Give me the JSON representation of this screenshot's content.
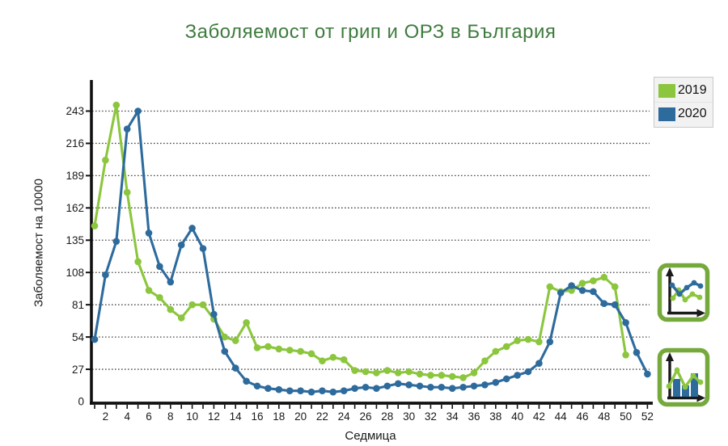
{
  "title": "Заболяемост от грип и ОРЗ в България",
  "legend": {
    "items": [
      {
        "label": "2019",
        "color": "#8cc63e"
      },
      {
        "label": "2020",
        "color": "#2e6b9d"
      }
    ]
  },
  "chart_data": {
    "type": "line",
    "title": "Заболяемост от грип и ОРЗ в България",
    "xlabel": "Седмица",
    "ylabel": "Заболяемост на 10000",
    "x_unit": "week",
    "x_start": 1,
    "x_end": 52,
    "x_tick_labels": [
      2,
      4,
      6,
      8,
      10,
      12,
      14,
      16,
      18,
      20,
      22,
      24,
      26,
      28,
      30,
      32,
      34,
      36,
      38,
      40,
      42,
      44,
      46,
      48,
      50,
      52
    ],
    "y_ticks": [
      0,
      27,
      54,
      81,
      108,
      135,
      162,
      189,
      216,
      243
    ],
    "ylim": [
      0,
      260
    ],
    "grid": "horizontal-dotted",
    "legend_position": "top-right",
    "series": [
      {
        "name": "2019",
        "color": "#8cc63e",
        "first_week": 1,
        "values": [
          147,
          202,
          248,
          175,
          117,
          93,
          87,
          77,
          70,
          81,
          81,
          69,
          54,
          51,
          66,
          45,
          46,
          44,
          43,
          42,
          40,
          34,
          37,
          35,
          26,
          25,
          24,
          26,
          24,
          25,
          23,
          22,
          22,
          21,
          20,
          24,
          34,
          42,
          46,
          51,
          52,
          50,
          96,
          92,
          93,
          99,
          101,
          104,
          96,
          39
        ]
      },
      {
        "name": "2020",
        "color": "#2e6b9d",
        "first_week": 1,
        "values": [
          52,
          106,
          134,
          228,
          243,
          141,
          113,
          100,
          131,
          145,
          128,
          73,
          42,
          28,
          17,
          13,
          11,
          10,
          9,
          9,
          8,
          9,
          8,
          9,
          11,
          12,
          11,
          13,
          15,
          14,
          13,
          12,
          12,
          11,
          12,
          13,
          14,
          16,
          19,
          22,
          25,
          32,
          50,
          91,
          97,
          93,
          92,
          82,
          81,
          66,
          41,
          23
        ]
      }
    ]
  },
  "icons": [
    {
      "name": "line-chart-type-icon",
      "border_color": "#76a93c"
    },
    {
      "name": "bar-line-chart-type-icon",
      "border_color": "#76a93c"
    }
  ]
}
